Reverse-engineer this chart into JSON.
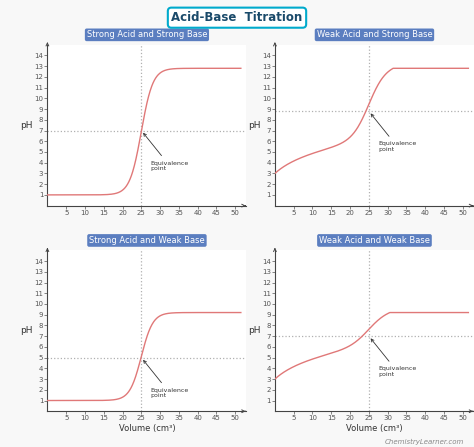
{
  "title_part1": "Acid-Base",
  "title_part2": "Titration",
  "title_color1": "#1a4a6a",
  "title_color2": "#00aacc",
  "title_box_edge": "#00aacc",
  "subplot_titles": [
    "Strong Acid and Strong Base",
    "Weak Acid and Strong Base",
    "Strong Acid and Weak Base",
    "Weak Acid and Weak Base"
  ],
  "subplot_title_bg": "#5b7ec0",
  "subplot_title_color": "white",
  "curve_color": "#e07878",
  "eq_vert_color": "#b0b0b0",
  "eq_horiz_color": "#b0b0b0",
  "axis_color": "#444444",
  "background_color": "#f8f8f8",
  "ylabel": "pH",
  "xlabel": "Volume (cm³)",
  "eq_point_label": "Equivalence\npoint",
  "eq_x": 25,
  "xlim": [
    0,
    53
  ],
  "ylim": [
    0,
    15
  ],
  "yticks": [
    1,
    2,
    3,
    4,
    5,
    6,
    7,
    8,
    9,
    10,
    11,
    12,
    13,
    14
  ],
  "xticks": [
    5,
    10,
    15,
    20,
    25,
    30,
    35,
    40,
    45,
    50
  ],
  "footnote": "ChemistryLearner.com",
  "plots": [
    {
      "eq_ph": 7,
      "start_ph": 1.0,
      "end_ph": 12.8,
      "steepness": 0.65,
      "inflection": 25,
      "weak_acid": false
    },
    {
      "eq_ph": 8.8,
      "start_ph": 3.0,
      "end_ph": 12.8,
      "steepness": 0.45,
      "inflection": 25,
      "weak_acid": true
    },
    {
      "eq_ph": 5,
      "start_ph": 1.0,
      "end_ph": 9.2,
      "steepness": 0.65,
      "inflection": 25,
      "weak_acid": false
    },
    {
      "eq_ph": 7,
      "start_ph": 3.0,
      "end_ph": 9.2,
      "steepness": 0.4,
      "inflection": 25,
      "weak_acid": true
    }
  ]
}
